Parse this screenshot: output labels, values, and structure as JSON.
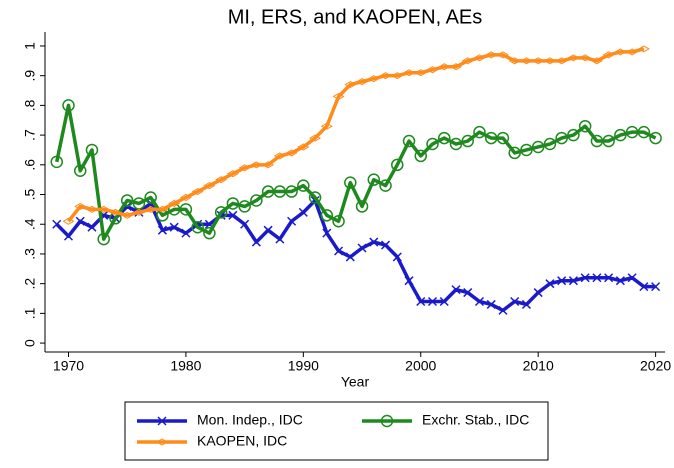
{
  "chart_data": {
    "type": "line",
    "title": "MI, ERS, and KAOPEN, AEs",
    "xlabel": "Year",
    "x": [
      1969,
      1970,
      1971,
      1972,
      1973,
      1974,
      1975,
      1976,
      1977,
      1978,
      1979,
      1980,
      1981,
      1982,
      1983,
      1984,
      1985,
      1986,
      1987,
      1988,
      1989,
      1990,
      1991,
      1992,
      1993,
      1994,
      1995,
      1996,
      1997,
      1998,
      1999,
      2000,
      2001,
      2002,
      2003,
      2004,
      2005,
      2006,
      2007,
      2008,
      2009,
      2010,
      2011,
      2012,
      2013,
      2014,
      2015,
      2016,
      2017,
      2018,
      2019,
      2020
    ],
    "series": [
      {
        "name": "Mon. Indep., IDC",
        "color": "#1a1acc",
        "marker": "x",
        "values": [
          0.4,
          0.36,
          0.41,
          0.39,
          0.43,
          0.42,
          0.46,
          0.44,
          0.47,
          0.38,
          0.39,
          0.37,
          0.4,
          0.4,
          0.43,
          0.43,
          0.4,
          0.34,
          0.38,
          0.35,
          0.41,
          0.44,
          0.48,
          0.37,
          0.31,
          0.29,
          0.32,
          0.34,
          0.33,
          0.29,
          0.21,
          0.14,
          0.14,
          0.14,
          0.18,
          0.17,
          0.14,
          0.13,
          0.11,
          0.14,
          0.13,
          0.17,
          0.2,
          0.21,
          0.21,
          0.22,
          0.22,
          0.22,
          0.21,
          0.22,
          0.19,
          0.19
        ]
      },
      {
        "name": "Exchr. Stab., IDC",
        "color": "#1e8a1e",
        "marker": "circle",
        "values": [
          0.61,
          0.8,
          0.58,
          0.65,
          0.35,
          0.42,
          0.48,
          0.47,
          0.49,
          0.43,
          0.45,
          0.45,
          0.39,
          0.37,
          0.44,
          0.47,
          0.46,
          0.48,
          0.51,
          0.51,
          0.51,
          0.53,
          0.49,
          0.43,
          0.41,
          0.54,
          0.46,
          0.55,
          0.53,
          0.6,
          0.68,
          0.63,
          0.67,
          0.69,
          0.67,
          0.68,
          0.71,
          0.69,
          0.69,
          0.64,
          0.65,
          0.66,
          0.67,
          0.69,
          0.7,
          0.73,
          0.68,
          0.68,
          0.7,
          0.71,
          0.71,
          0.69
        ]
      },
      {
        "name": "KAOPEN, IDC",
        "color": "#ff8c1a",
        "marker": "diamond",
        "values": [
          null,
          0.41,
          0.46,
          0.45,
          0.45,
          0.44,
          0.43,
          0.44,
          0.45,
          0.45,
          0.47,
          0.49,
          0.51,
          0.53,
          0.55,
          0.57,
          0.59,
          0.6,
          0.6,
          0.63,
          0.64,
          0.66,
          0.69,
          0.73,
          0.83,
          0.87,
          0.88,
          0.89,
          0.9,
          0.9,
          0.91,
          0.91,
          0.92,
          0.93,
          0.93,
          0.95,
          0.96,
          0.97,
          0.97,
          0.95,
          0.95,
          0.95,
          0.95,
          0.95,
          0.96,
          0.96,
          0.95,
          0.97,
          0.98,
          0.98,
          0.99,
          null
        ]
      }
    ],
    "xlim": [
      1968,
      2020.8
    ],
    "xticks": [
      1970,
      1980,
      1990,
      2000,
      2010,
      2020
    ],
    "ylim": [
      -0.03,
      1.047
    ],
    "yticks": [
      0,
      {
        "value": 0.1,
        "label": ".1"
      },
      {
        "value": 0.2,
        "label": ".2"
      },
      {
        "value": 0.3,
        "label": ".3"
      },
      {
        "value": 0.4,
        "label": ".4"
      },
      {
        "value": 0.5,
        "label": ".5"
      },
      {
        "value": 0.6,
        "label": ".6"
      },
      {
        "value": 0.7,
        "label": ".7"
      },
      {
        "value": 0.8,
        "label": ".8"
      },
      {
        "value": 0.9,
        "label": ".9"
      },
      1
    ],
    "grid": false,
    "legend": "bottom"
  }
}
